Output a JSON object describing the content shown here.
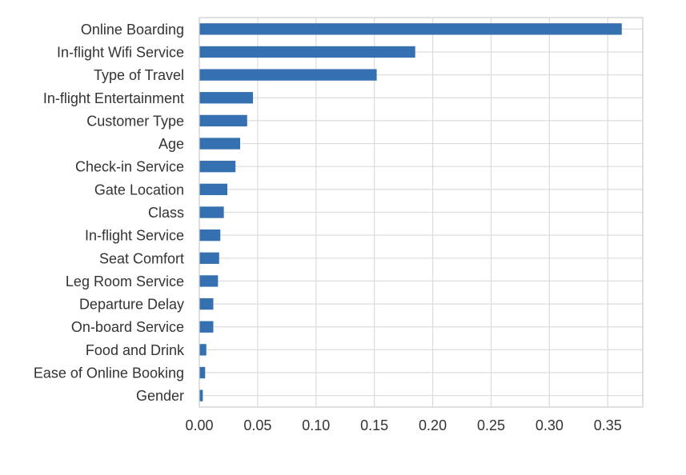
{
  "chart_data": {
    "type": "bar",
    "orientation": "horizontal",
    "categories": [
      "Online Boarding",
      "In-flight Wifi Service",
      "Type of Travel",
      "In-flight Entertainment",
      "Customer Type",
      "Age",
      "Check-in Service",
      "Gate Location",
      "Class",
      "In-flight Service",
      "Seat Comfort",
      "Leg Room Service",
      "Departure Delay",
      "On-board Service",
      "Food and Drink",
      "Ease of Online Booking",
      "Gender"
    ],
    "values": [
      0.362,
      0.185,
      0.152,
      0.046,
      0.041,
      0.035,
      0.031,
      0.024,
      0.021,
      0.018,
      0.017,
      0.016,
      0.012,
      0.012,
      0.006,
      0.005,
      0.003
    ],
    "xlim": [
      0,
      0.38
    ],
    "xticks": [
      0.0,
      0.05,
      0.1,
      0.15,
      0.2,
      0.25,
      0.3,
      0.35
    ],
    "xtick_labels": [
      "0.00",
      "0.05",
      "0.10",
      "0.15",
      "0.20",
      "0.25",
      "0.30",
      "0.35"
    ],
    "title": "",
    "xlabel": "",
    "ylabel": "",
    "grid": true,
    "bar_color": "#3570b0",
    "grid_color": "#dcdcdc",
    "spine_color": "#cccccc"
  }
}
